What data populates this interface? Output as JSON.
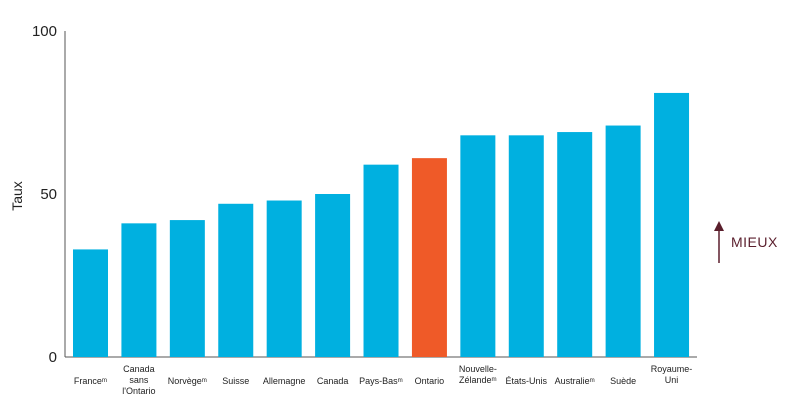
{
  "chart_data": {
    "type": "bar",
    "ylabel": "Taux",
    "ylim": [
      0,
      100
    ],
    "yticks": [
      "0",
      "50",
      "100"
    ],
    "categories": [
      [
        "Franceᵐ"
      ],
      [
        "Canada",
        "sans",
        "l'Ontario"
      ],
      [
        "Norvègeᵐ"
      ],
      [
        "Suisse"
      ],
      [
        "Allemagne"
      ],
      [
        "Canada"
      ],
      [
        "Pays-Basᵐ"
      ],
      [
        "Ontario"
      ],
      [
        "Nouvelle-",
        "Zélandeᵐ"
      ],
      [
        "États-Unis"
      ],
      [
        "Australieᵐ"
      ],
      [
        "Suède"
      ],
      [
        "Royaume-",
        "Uni"
      ]
    ],
    "values": [
      33,
      41,
      42,
      47,
      48,
      50,
      59,
      61,
      68,
      68,
      69,
      71,
      81
    ],
    "highlight_index": 7,
    "colors": {
      "bar": "#00b0e0",
      "highlight": "#ef5a28",
      "arrow": "#5a1e2c",
      "axis": "#555555"
    },
    "annotation": "MIEUX",
    "grid": false,
    "legend": "none"
  }
}
